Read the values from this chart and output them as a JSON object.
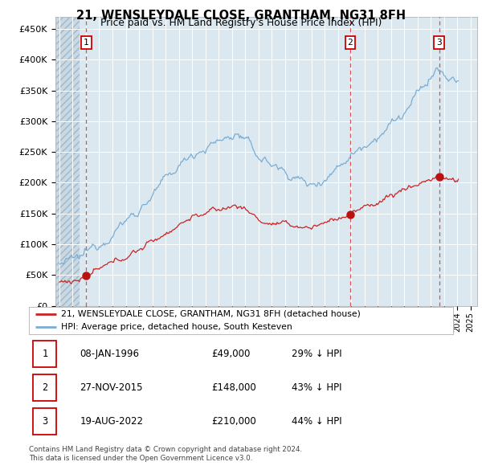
{
  "title": "21, WENSLEYDALE CLOSE, GRANTHAM, NG31 8FH",
  "subtitle": "Price paid vs. HM Land Registry's House Price Index (HPI)",
  "legend_line1": "21, WENSLEYDALE CLOSE, GRANTHAM, NG31 8FH (detached house)",
  "legend_line2": "HPI: Average price, detached house, South Kesteven",
  "footer1": "Contains HM Land Registry data © Crown copyright and database right 2024.",
  "footer2": "This data is licensed under the Open Government Licence v3.0.",
  "transactions": [
    {
      "num": 1,
      "date": "08-JAN-1996",
      "year": 1996.03,
      "price": 49000,
      "pct": "29% ↓ HPI"
    },
    {
      "num": 2,
      "date": "27-NOV-2015",
      "year": 2015.92,
      "price": 148000,
      "pct": "43% ↓ HPI"
    },
    {
      "num": 3,
      "date": "19-AUG-2022",
      "year": 2022.63,
      "price": 210000,
      "pct": "44% ↓ HPI"
    }
  ],
  "hpi_line_color": "#7aadd4",
  "price_line_color": "#cc2222",
  "dot_color": "#bb1111",
  "vline_color": "#dd3333",
  "chart_bg_color": "#dce8f0",
  "hatch_region_end": 1995.5,
  "ylim": [
    0,
    470000
  ],
  "xlim_start": 1993.7,
  "xlim_end": 2025.5,
  "yticks": [
    0,
    50000,
    100000,
    150000,
    200000,
    250000,
    300000,
    350000,
    400000,
    450000
  ],
  "ylabels": [
    "£0",
    "£50K",
    "£100K",
    "£150K",
    "£200K",
    "£250K",
    "£300K",
    "£350K",
    "£400K",
    "£450K"
  ]
}
